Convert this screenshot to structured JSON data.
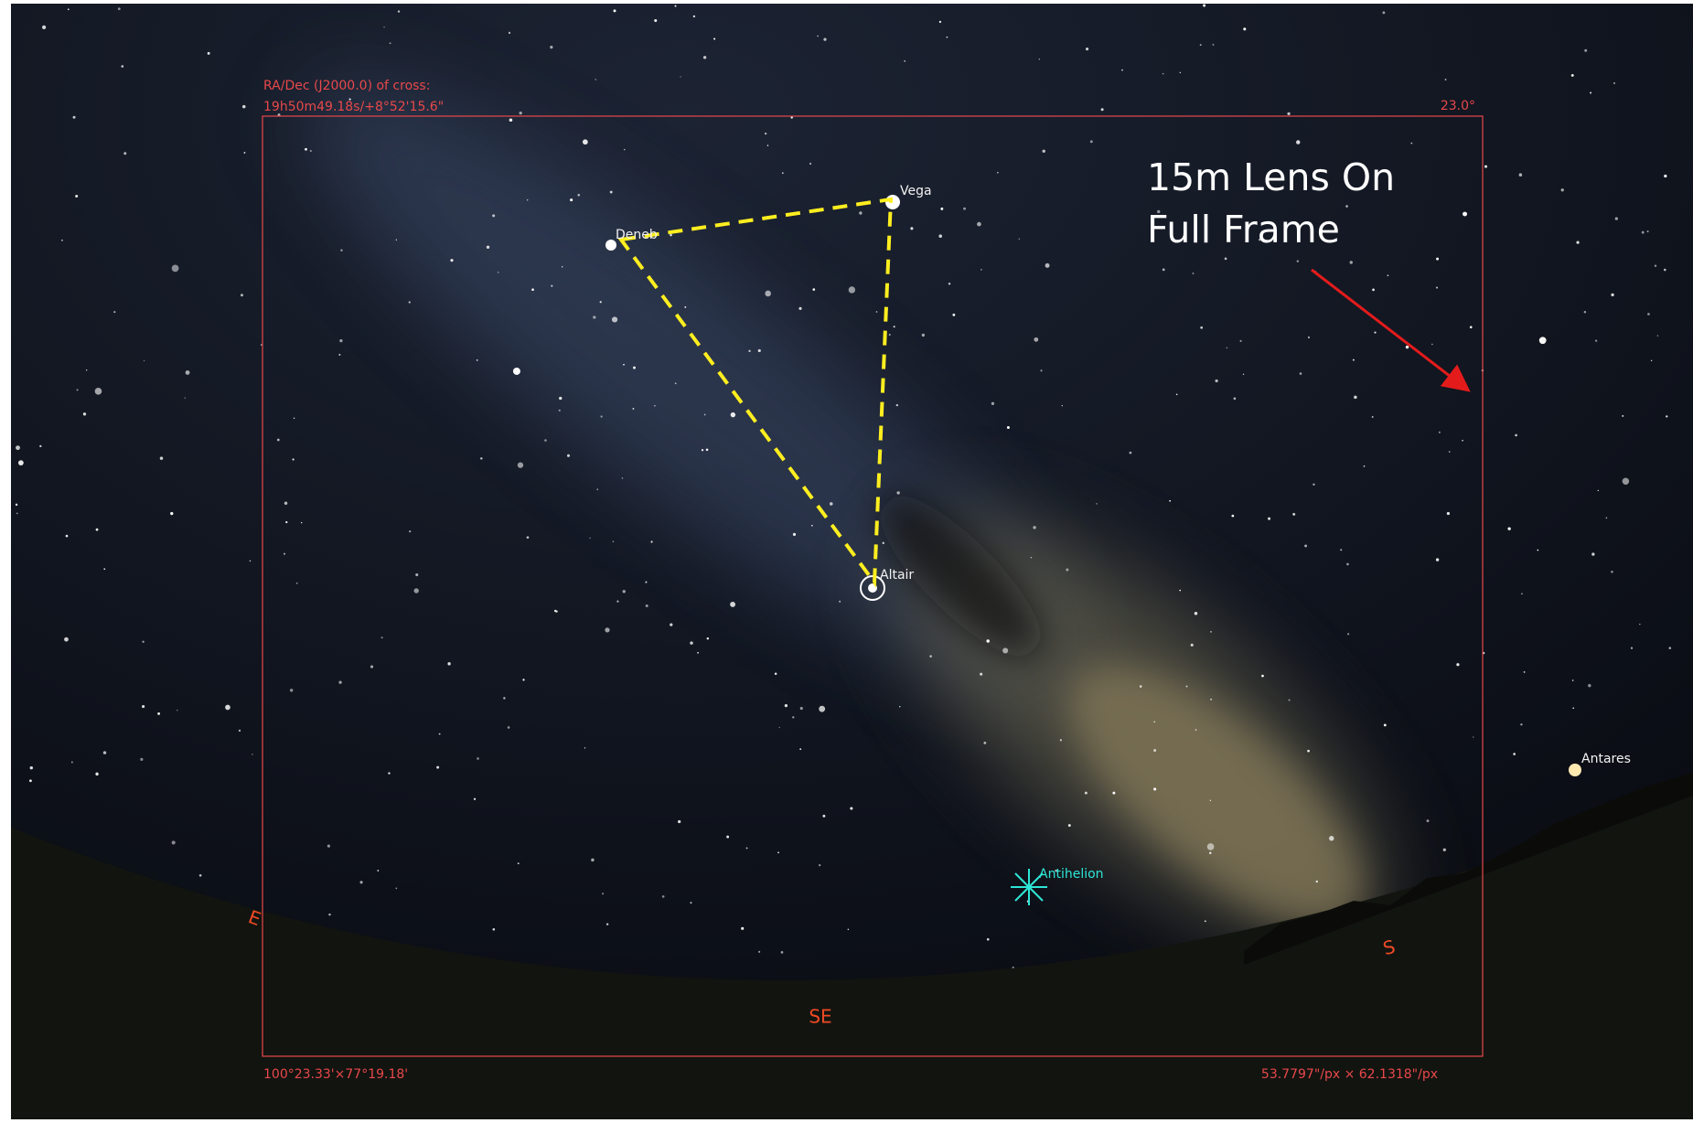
{
  "overlay": {
    "cross_label": "RA/Dec (J2000.0) of cross:",
    "cross_coords": "19h50m49.18s/+8°52'15.6\"",
    "fov_label": "23.0°",
    "fov_size": "100°23.33'×77°19.18'",
    "scale": "53.7797\"/px × 62.1318\"/px"
  },
  "objects": [
    {
      "label": "Vega"
    },
    {
      "label": "Deneb"
    },
    {
      "label": "Altair"
    },
    {
      "label": "Antares"
    },
    {
      "label": "Antihelion"
    }
  ],
  "cardinals": [
    "E",
    "SE",
    "S"
  ],
  "annotation": {
    "lines": [
      "15m Lens On",
      "Full Frame"
    ]
  }
}
